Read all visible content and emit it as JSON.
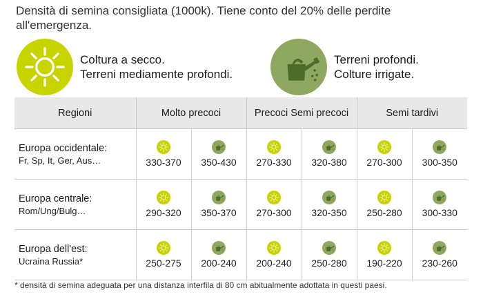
{
  "intro": {
    "line1": "Densità di semina consigliata (1000k). Tiene conto del 20% delle perdite",
    "line2": "all'emergenza."
  },
  "legend": {
    "dry": {
      "icon": "sun-icon",
      "color": "#c8d400",
      "line1": "Coltura a secco.",
      "line2": "Terreni mediamente profondi."
    },
    "irrigated": {
      "icon": "watering-can-icon",
      "color": "#8fa860",
      "line1": "Terreni profondi.",
      "line2": "Colture irrigate."
    }
  },
  "table": {
    "headers": {
      "regions": "Regioni",
      "group1": "Molto precoci",
      "group2": "Precoci Semi precoci",
      "group3": "Semi tardivi"
    },
    "rows": [
      {
        "name": "Europa occidentale:",
        "sub": "Fr, Sp, It, Ger, Aus…",
        "values": [
          "330-370",
          "350-430",
          "270-330",
          "320-380",
          "270-300",
          "300-350"
        ]
      },
      {
        "name": "Europa centrale:",
        "sub": "Rom/Ung/Bulg…",
        "values": [
          "290-320",
          "350-370",
          "270-300",
          "320-350",
          "250-280",
          "300-330"
        ]
      },
      {
        "name": "Europa dell'est:",
        "sub": "Ucraina Russia*",
        "values": [
          "250-275",
          "200-240",
          "200-240",
          "250-280",
          "190-220",
          "230-260"
        ]
      }
    ]
  },
  "footnote": "* densità di semina adeguata per una distanza interfila di 80 cm abitualmente adottata in questi paesi."
}
